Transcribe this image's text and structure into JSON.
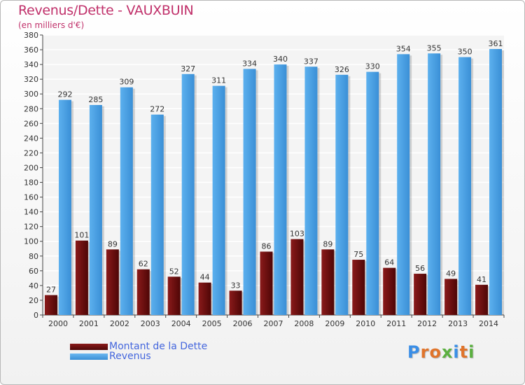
{
  "chart_data": {
    "type": "bar",
    "title": "Revenus/Dette - VAUXBUIN",
    "subtitle": "(en milliers d'€)",
    "categories": [
      "2000",
      "2001",
      "2002",
      "2003",
      "2004",
      "2005",
      "2006",
      "2007",
      "2008",
      "2009",
      "2010",
      "2011",
      "2012",
      "2013",
      "2014"
    ],
    "series": [
      {
        "name": "Montant de la Dette",
        "values": [
          27,
          101,
          89,
          62,
          52,
          44,
          33,
          86,
          103,
          89,
          75,
          64,
          56,
          49,
          41
        ],
        "color": "#6e0a0a"
      },
      {
        "name": "Revenus",
        "values": [
          292,
          285,
          309,
          272,
          327,
          311,
          334,
          340,
          337,
          326,
          330,
          354,
          355,
          350,
          361
        ],
        "color": "#4da3e6"
      }
    ],
    "ylim": [
      0,
      380
    ],
    "ytick_step": 20,
    "grid": true,
    "legend_position": "bottom-left"
  },
  "logo": {
    "letters": [
      "P",
      "r",
      "o",
      "x",
      "i",
      "t",
      "i"
    ],
    "colors": [
      "#3a8ee6",
      "#e0742b",
      "#e0742b",
      "#5bb040",
      "#3a8ee6",
      "#e0742b",
      "#5bb040"
    ]
  }
}
